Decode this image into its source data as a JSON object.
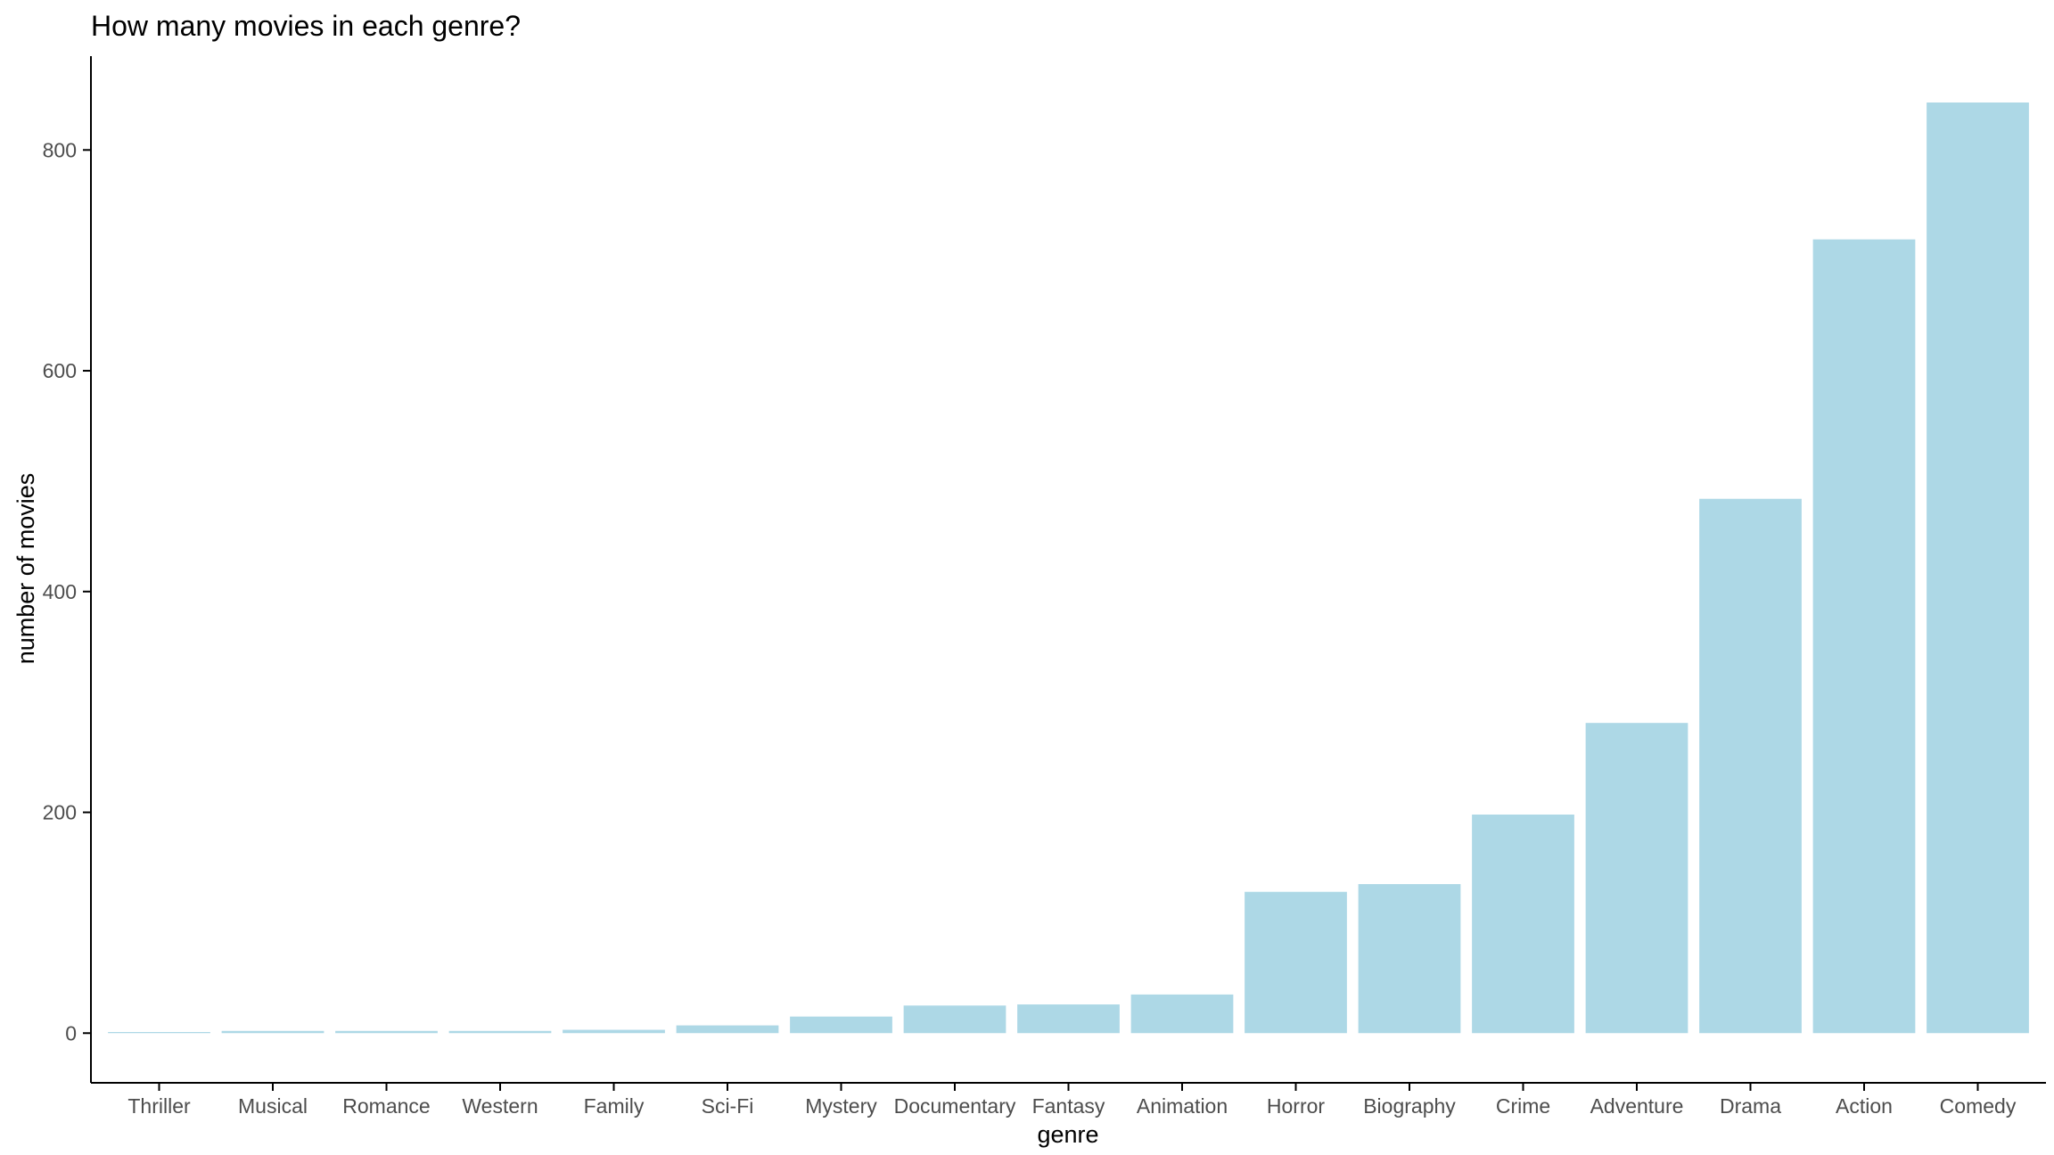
{
  "chart_data": {
    "type": "bar",
    "title": "How many movies in each genre?",
    "xlabel": "genre",
    "ylabel": "number of movies",
    "categories": [
      "Thriller",
      "Musical",
      "Romance",
      "Western",
      "Family",
      "Sci-Fi",
      "Mystery",
      "Documentary",
      "Fantasy",
      "Animation",
      "Horror",
      "Biography",
      "Crime",
      "Adventure",
      "Drama",
      "Action",
      "Comedy"
    ],
    "values": [
      1,
      2,
      2,
      2,
      3,
      7,
      15,
      25,
      26,
      35,
      128,
      135,
      198,
      281,
      484,
      719,
      843
    ],
    "ylim": [
      -45,
      885
    ],
    "yticks": [
      0,
      200,
      400,
      600,
      800
    ],
    "bar_color": "#ADD8E6",
    "grid": false,
    "legend": "none"
  }
}
